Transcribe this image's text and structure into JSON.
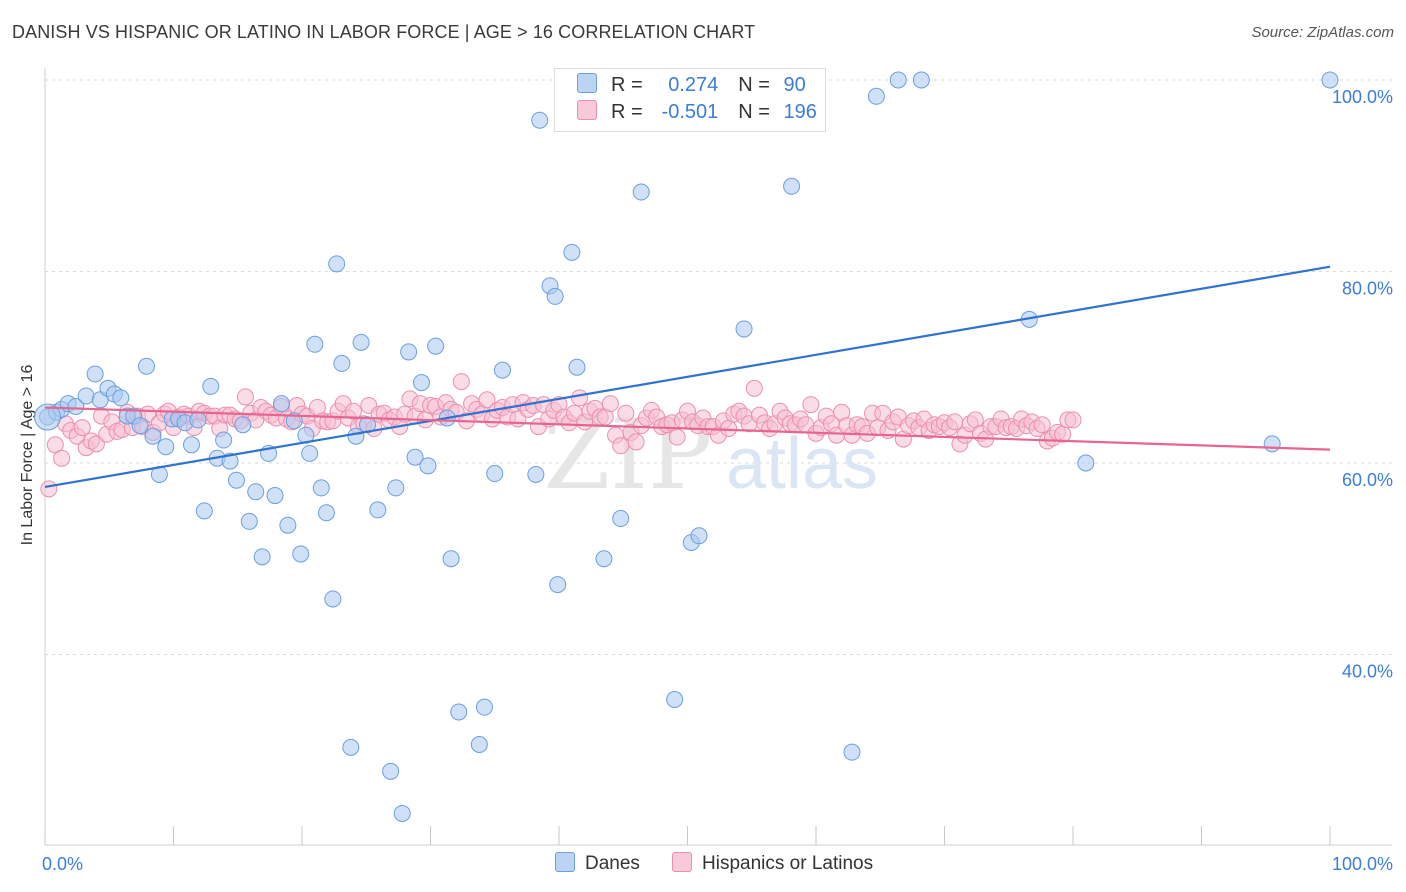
{
  "header": {
    "title": "DANISH VS HISPANIC OR LATINO IN LABOR FORCE | AGE > 16 CORRELATION CHART",
    "source": "Source: ZipAtlas.com"
  },
  "watermark": {
    "zip": "ZIP",
    "atlas": "atlas"
  },
  "legend": {
    "r_label": "R =",
    "n_label": "N =",
    "danes": {
      "r": "0.274",
      "n": "90"
    },
    "hispanic": {
      "r": "-0.501",
      "n": "196"
    }
  },
  "colors": {
    "danes_fill": "#a9c8f0",
    "danes_stroke": "#6a9fe0",
    "danes_line": "#2f72d0",
    "hisp_fill": "#f6bfd1",
    "hisp_stroke": "#ec8fae",
    "hisp_line": "#e8658f",
    "grid": "#d9d9d9",
    "tick_label": "#3b7dd8"
  },
  "chart_data": {
    "type": "scatter",
    "title": "DANISH VS HISPANIC OR LATINO IN LABOR FORCE | AGE > 16 CORRELATION CHART",
    "xlabel": "",
    "ylabel": "In Labor Force | Age > 16",
    "xlim": [
      0,
      100
    ],
    "ylim": [
      20,
      101
    ],
    "x_tick_labels": [
      {
        "v": 0,
        "t": "0.0%"
      },
      {
        "v": 100,
        "t": "100.0%"
      }
    ],
    "y_tick_labels": [
      {
        "v": 40,
        "t": "40.0%"
      },
      {
        "v": 60,
        "t": "60.0%"
      },
      {
        "v": 80,
        "t": "80.0%"
      },
      {
        "v": 100,
        "t": "100.0%"
      }
    ],
    "y_grid": [
      40,
      60,
      80,
      100
    ],
    "x_ticks": [
      0,
      10,
      20,
      30,
      40,
      50,
      60,
      70,
      80,
      90,
      100
    ],
    "legend_position": "top-center",
    "series": [
      {
        "name": "Danes",
        "R": 0.274,
        "N": 90,
        "trend": {
          "x": [
            0,
            100
          ],
          "y": [
            57.5,
            80.5
          ]
        },
        "points": [
          [
            0.2,
            64.8
          ],
          [
            0.9,
            65.3
          ],
          [
            1.3,
            65.6
          ],
          [
            1.8,
            66.2
          ],
          [
            2.4,
            65.9
          ],
          [
            3.2,
            67.0
          ],
          [
            3.9,
            69.3
          ],
          [
            4.3,
            66.6
          ],
          [
            4.9,
            67.8
          ],
          [
            5.4,
            67.2
          ],
          [
            5.9,
            66.8
          ],
          [
            6.4,
            64.9
          ],
          [
            6.9,
            64.9
          ],
          [
            7.4,
            63.9
          ],
          [
            7.9,
            70.1
          ],
          [
            8.4,
            62.8
          ],
          [
            8.9,
            58.8
          ],
          [
            9.4,
            61.7
          ],
          [
            9.9,
            64.6
          ],
          [
            10.4,
            64.6
          ],
          [
            10.9,
            64.2
          ],
          [
            11.4,
            61.9
          ],
          [
            11.9,
            64.5
          ],
          [
            12.4,
            55.0
          ],
          [
            12.9,
            68.0
          ],
          [
            13.4,
            60.5
          ],
          [
            13.9,
            62.4
          ],
          [
            14.4,
            60.2
          ],
          [
            14.9,
            58.2
          ],
          [
            15.4,
            64.0
          ],
          [
            15.9,
            53.9
          ],
          [
            16.4,
            57.0
          ],
          [
            16.9,
            50.2
          ],
          [
            17.4,
            61.0
          ],
          [
            17.9,
            56.6
          ],
          [
            18.4,
            66.2
          ],
          [
            18.9,
            53.5
          ],
          [
            19.4,
            64.4
          ],
          [
            19.9,
            50.5
          ],
          [
            20.3,
            62.9
          ],
          [
            20.6,
            61.0
          ],
          [
            21.0,
            72.4
          ],
          [
            21.5,
            57.4
          ],
          [
            21.9,
            54.8
          ],
          [
            22.4,
            45.8
          ],
          [
            22.7,
            80.8
          ],
          [
            23.1,
            70.4
          ],
          [
            23.8,
            30.3
          ],
          [
            24.2,
            62.8
          ],
          [
            24.6,
            72.6
          ],
          [
            25.1,
            64.0
          ],
          [
            25.9,
            55.1
          ],
          [
            26.9,
            27.8
          ],
          [
            27.3,
            57.4
          ],
          [
            27.8,
            23.4
          ],
          [
            28.3,
            71.6
          ],
          [
            28.8,
            60.6
          ],
          [
            29.3,
            68.4
          ],
          [
            29.8,
            59.7
          ],
          [
            30.4,
            72.2
          ],
          [
            31.3,
            64.7
          ],
          [
            31.6,
            50.0
          ],
          [
            32.2,
            34.0
          ],
          [
            33.8,
            30.6
          ],
          [
            34.2,
            34.5
          ],
          [
            35.0,
            58.9
          ],
          [
            35.6,
            69.7
          ],
          [
            38.2,
            58.8
          ],
          [
            38.5,
            95.8
          ],
          [
            39.3,
            78.5
          ],
          [
            39.7,
            77.4
          ],
          [
            39.9,
            47.3
          ],
          [
            41.0,
            82.0
          ],
          [
            41.4,
            70.0
          ],
          [
            43.5,
            50.0
          ],
          [
            44.8,
            54.2
          ],
          [
            46.4,
            88.3
          ],
          [
            49.0,
            35.3
          ],
          [
            50.3,
            51.7
          ],
          [
            50.9,
            52.4
          ],
          [
            54.4,
            74.0
          ],
          [
            58.1,
            88.9
          ],
          [
            62.8,
            29.8
          ],
          [
            64.7,
            98.3
          ],
          [
            66.4,
            100.0
          ],
          [
            68.2,
            100.0
          ],
          [
            76.6,
            75.0
          ],
          [
            81.0,
            60.0
          ],
          [
            95.5,
            62.0
          ],
          [
            100.0,
            100.0
          ]
        ]
      },
      {
        "name": "Hispanics or Latinos",
        "R": -0.501,
        "N": 196,
        "trend": {
          "x": [
            0,
            100
          ],
          "y": [
            65.8,
            61.4
          ]
        },
        "points": [
          [
            0.3,
            57.3
          ],
          [
            0.8,
            61.9
          ],
          [
            1.3,
            60.5
          ],
          [
            1.6,
            64.1
          ],
          [
            2.0,
            63.4
          ],
          [
            2.5,
            62.8
          ],
          [
            2.9,
            63.7
          ],
          [
            3.2,
            61.6
          ],
          [
            3.6,
            62.3
          ],
          [
            4.0,
            62.0
          ],
          [
            4.4,
            64.9
          ],
          [
            4.8,
            63.0
          ],
          [
            5.2,
            64.3
          ],
          [
            5.6,
            63.3
          ],
          [
            6.0,
            63.5
          ],
          [
            6.4,
            65.3
          ],
          [
            6.8,
            63.7
          ],
          [
            7.2,
            64.9
          ],
          [
            7.6,
            63.8
          ],
          [
            8.0,
            65.1
          ],
          [
            8.4,
            63.2
          ],
          [
            8.9,
            64.2
          ],
          [
            9.3,
            65.1
          ],
          [
            9.6,
            65.4
          ],
          [
            10.0,
            63.7
          ],
          [
            10.4,
            64.8
          ],
          [
            10.8,
            65.1
          ],
          [
            11.2,
            64.9
          ],
          [
            11.6,
            63.7
          ],
          [
            12.0,
            65.4
          ],
          [
            12.4,
            65.2
          ],
          [
            12.8,
            64.9
          ],
          [
            13.2,
            64.9
          ],
          [
            13.6,
            63.6
          ],
          [
            14.0,
            65.0
          ],
          [
            14.4,
            65.0
          ],
          [
            14.8,
            64.6
          ],
          [
            15.2,
            64.4
          ],
          [
            15.6,
            66.9
          ],
          [
            16.0,
            65.2
          ],
          [
            16.4,
            64.5
          ],
          [
            16.8,
            65.8
          ],
          [
            17.2,
            65.4
          ],
          [
            17.6,
            65.0
          ],
          [
            18.0,
            64.7
          ],
          [
            18.4,
            65.9
          ],
          [
            18.8,
            64.6
          ],
          [
            19.2,
            64.3
          ],
          [
            19.6,
            66.0
          ],
          [
            20.0,
            65.1
          ],
          [
            20.4,
            64.9
          ],
          [
            20.8,
            63.6
          ],
          [
            21.2,
            65.8
          ],
          [
            21.6,
            64.4
          ],
          [
            22.0,
            64.3
          ],
          [
            22.4,
            64.4
          ],
          [
            22.8,
            65.4
          ],
          [
            23.2,
            66.2
          ],
          [
            23.6,
            64.7
          ],
          [
            24.0,
            65.4
          ],
          [
            24.4,
            63.8
          ],
          [
            24.8,
            64.1
          ],
          [
            25.2,
            66.0
          ],
          [
            25.6,
            63.6
          ],
          [
            26.0,
            65.1
          ],
          [
            26.4,
            65.2
          ],
          [
            26.8,
            64.5
          ],
          [
            27.2,
            64.8
          ],
          [
            27.6,
            63.8
          ],
          [
            28.0,
            65.1
          ],
          [
            28.4,
            66.7
          ],
          [
            28.8,
            64.9
          ],
          [
            29.2,
            66.2
          ],
          [
            29.6,
            64.5
          ],
          [
            30.0,
            66.0
          ],
          [
            30.4,
            65.9
          ],
          [
            30.8,
            64.8
          ],
          [
            31.2,
            66.3
          ],
          [
            31.6,
            65.6
          ],
          [
            32.0,
            65.3
          ],
          [
            32.4,
            68.5
          ],
          [
            32.8,
            64.4
          ],
          [
            33.2,
            66.2
          ],
          [
            33.6,
            65.6
          ],
          [
            34.0,
            65.1
          ],
          [
            34.4,
            66.6
          ],
          [
            34.8,
            64.6
          ],
          [
            35.2,
            65.5
          ],
          [
            35.6,
            65.8
          ],
          [
            36.0,
            64.8
          ],
          [
            36.4,
            66.1
          ],
          [
            36.8,
            64.6
          ],
          [
            37.2,
            66.3
          ],
          [
            37.6,
            65.6
          ],
          [
            38.0,
            66.0
          ],
          [
            38.4,
            63.8
          ],
          [
            38.8,
            66.1
          ],
          [
            39.2,
            64.6
          ],
          [
            39.6,
            65.5
          ],
          [
            40.0,
            66.1
          ],
          [
            40.4,
            64.8
          ],
          [
            40.8,
            64.2
          ],
          [
            41.2,
            65.2
          ],
          [
            41.6,
            66.8
          ],
          [
            42.0,
            64.3
          ],
          [
            42.4,
            65.4
          ],
          [
            42.8,
            65.7
          ],
          [
            43.2,
            64.8
          ],
          [
            43.6,
            64.8
          ],
          [
            44.0,
            66.2
          ],
          [
            44.4,
            62.9
          ],
          [
            44.8,
            61.8
          ],
          [
            45.2,
            65.2
          ],
          [
            45.6,
            63.2
          ],
          [
            46.0,
            62.2
          ],
          [
            46.4,
            63.9
          ],
          [
            46.8,
            64.7
          ],
          [
            47.2,
            65.5
          ],
          [
            47.6,
            64.8
          ],
          [
            48.0,
            63.8
          ],
          [
            48.4,
            64.0
          ],
          [
            48.8,
            64.2
          ],
          [
            49.2,
            62.7
          ],
          [
            49.6,
            64.5
          ],
          [
            50.0,
            65.4
          ],
          [
            50.4,
            64.3
          ],
          [
            50.8,
            63.9
          ],
          [
            51.2,
            64.7
          ],
          [
            51.6,
            63.8
          ],
          [
            52.0,
            63.8
          ],
          [
            52.4,
            62.9
          ],
          [
            52.8,
            64.4
          ],
          [
            53.2,
            63.6
          ],
          [
            53.6,
            65.1
          ],
          [
            54.0,
            65.4
          ],
          [
            54.4,
            64.9
          ],
          [
            54.8,
            64.1
          ],
          [
            55.2,
            67.8
          ],
          [
            55.6,
            65.0
          ],
          [
            56.0,
            64.2
          ],
          [
            56.4,
            63.6
          ],
          [
            56.8,
            64.1
          ],
          [
            57.2,
            65.4
          ],
          [
            57.6,
            64.7
          ],
          [
            58.0,
            64.1
          ],
          [
            58.4,
            64.0
          ],
          [
            58.8,
            64.6
          ],
          [
            59.2,
            64.0
          ],
          [
            59.6,
            66.1
          ],
          [
            60.0,
            63.1
          ],
          [
            60.4,
            63.7
          ],
          [
            60.8,
            64.9
          ],
          [
            61.2,
            64.1
          ],
          [
            61.6,
            62.9
          ],
          [
            62.0,
            65.3
          ],
          [
            62.4,
            63.9
          ],
          [
            62.8,
            62.9
          ],
          [
            63.2,
            64.0
          ],
          [
            63.6,
            63.8
          ],
          [
            64.0,
            63.1
          ],
          [
            64.4,
            65.2
          ],
          [
            64.8,
            63.7
          ],
          [
            65.2,
            65.2
          ],
          [
            65.6,
            63.4
          ],
          [
            66.0,
            64.3
          ],
          [
            66.4,
            64.8
          ],
          [
            66.8,
            62.5
          ],
          [
            67.2,
            63.9
          ],
          [
            67.6,
            64.4
          ],
          [
            68.0,
            63.7
          ],
          [
            68.4,
            64.6
          ],
          [
            68.8,
            63.4
          ],
          [
            69.2,
            64.0
          ],
          [
            69.6,
            63.8
          ],
          [
            70.0,
            64.2
          ],
          [
            70.4,
            63.7
          ],
          [
            70.8,
            64.3
          ],
          [
            71.2,
            62.0
          ],
          [
            71.6,
            62.9
          ],
          [
            72.0,
            64.1
          ],
          [
            72.4,
            64.5
          ],
          [
            72.8,
            63.1
          ],
          [
            73.2,
            62.5
          ],
          [
            73.6,
            63.8
          ],
          [
            74.0,
            63.8
          ],
          [
            74.4,
            64.6
          ],
          [
            74.8,
            63.7
          ],
          [
            75.2,
            63.8
          ],
          [
            75.6,
            63.6
          ],
          [
            76.0,
            64.6
          ],
          [
            76.4,
            63.9
          ],
          [
            76.8,
            64.3
          ],
          [
            77.2,
            63.6
          ],
          [
            77.6,
            64.0
          ],
          [
            78.0,
            62.3
          ],
          [
            78.4,
            62.6
          ],
          [
            78.8,
            63.2
          ],
          [
            79.2,
            63.0
          ],
          [
            79.6,
            64.5
          ],
          [
            80.0,
            64.5
          ]
        ]
      }
    ]
  },
  "bottom_legend": {
    "danes": "Danes",
    "hispanic": "Hispanics or Latinos"
  }
}
